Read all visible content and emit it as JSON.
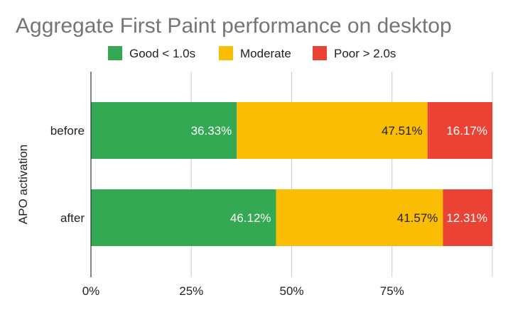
{
  "chart_data": {
    "type": "bar",
    "orientation": "horizontal",
    "stacked": true,
    "title": "Aggregate First Paint performance on desktop",
    "ylabel": "APO activation",
    "xlabel": "",
    "categories": [
      "before",
      "after"
    ],
    "series": [
      {
        "name": "Good < 1.0s",
        "color": "#34a853",
        "label_color": "#ffffff",
        "values": [
          36.33,
          46.12
        ],
        "labels": [
          "36.33%",
          "46.12%"
        ]
      },
      {
        "name": "Moderate",
        "color": "#fbbc04",
        "label_color": "#222222",
        "values": [
          47.51,
          41.57
        ],
        "labels": [
          "47.51%",
          "41.57%"
        ]
      },
      {
        "name": "Poor > 2.0s",
        "color": "#ea4335",
        "label_color": "#ffffff",
        "values": [
          16.17,
          12.31
        ],
        "labels": [
          "16.17%",
          "12.31%"
        ]
      }
    ],
    "xlim": [
      0,
      100
    ],
    "xticks": [
      0,
      25,
      50,
      75
    ],
    "xtick_labels": [
      "0%",
      "25%",
      "50%",
      "75%"
    ],
    "grid": true,
    "legend_position": "top"
  }
}
